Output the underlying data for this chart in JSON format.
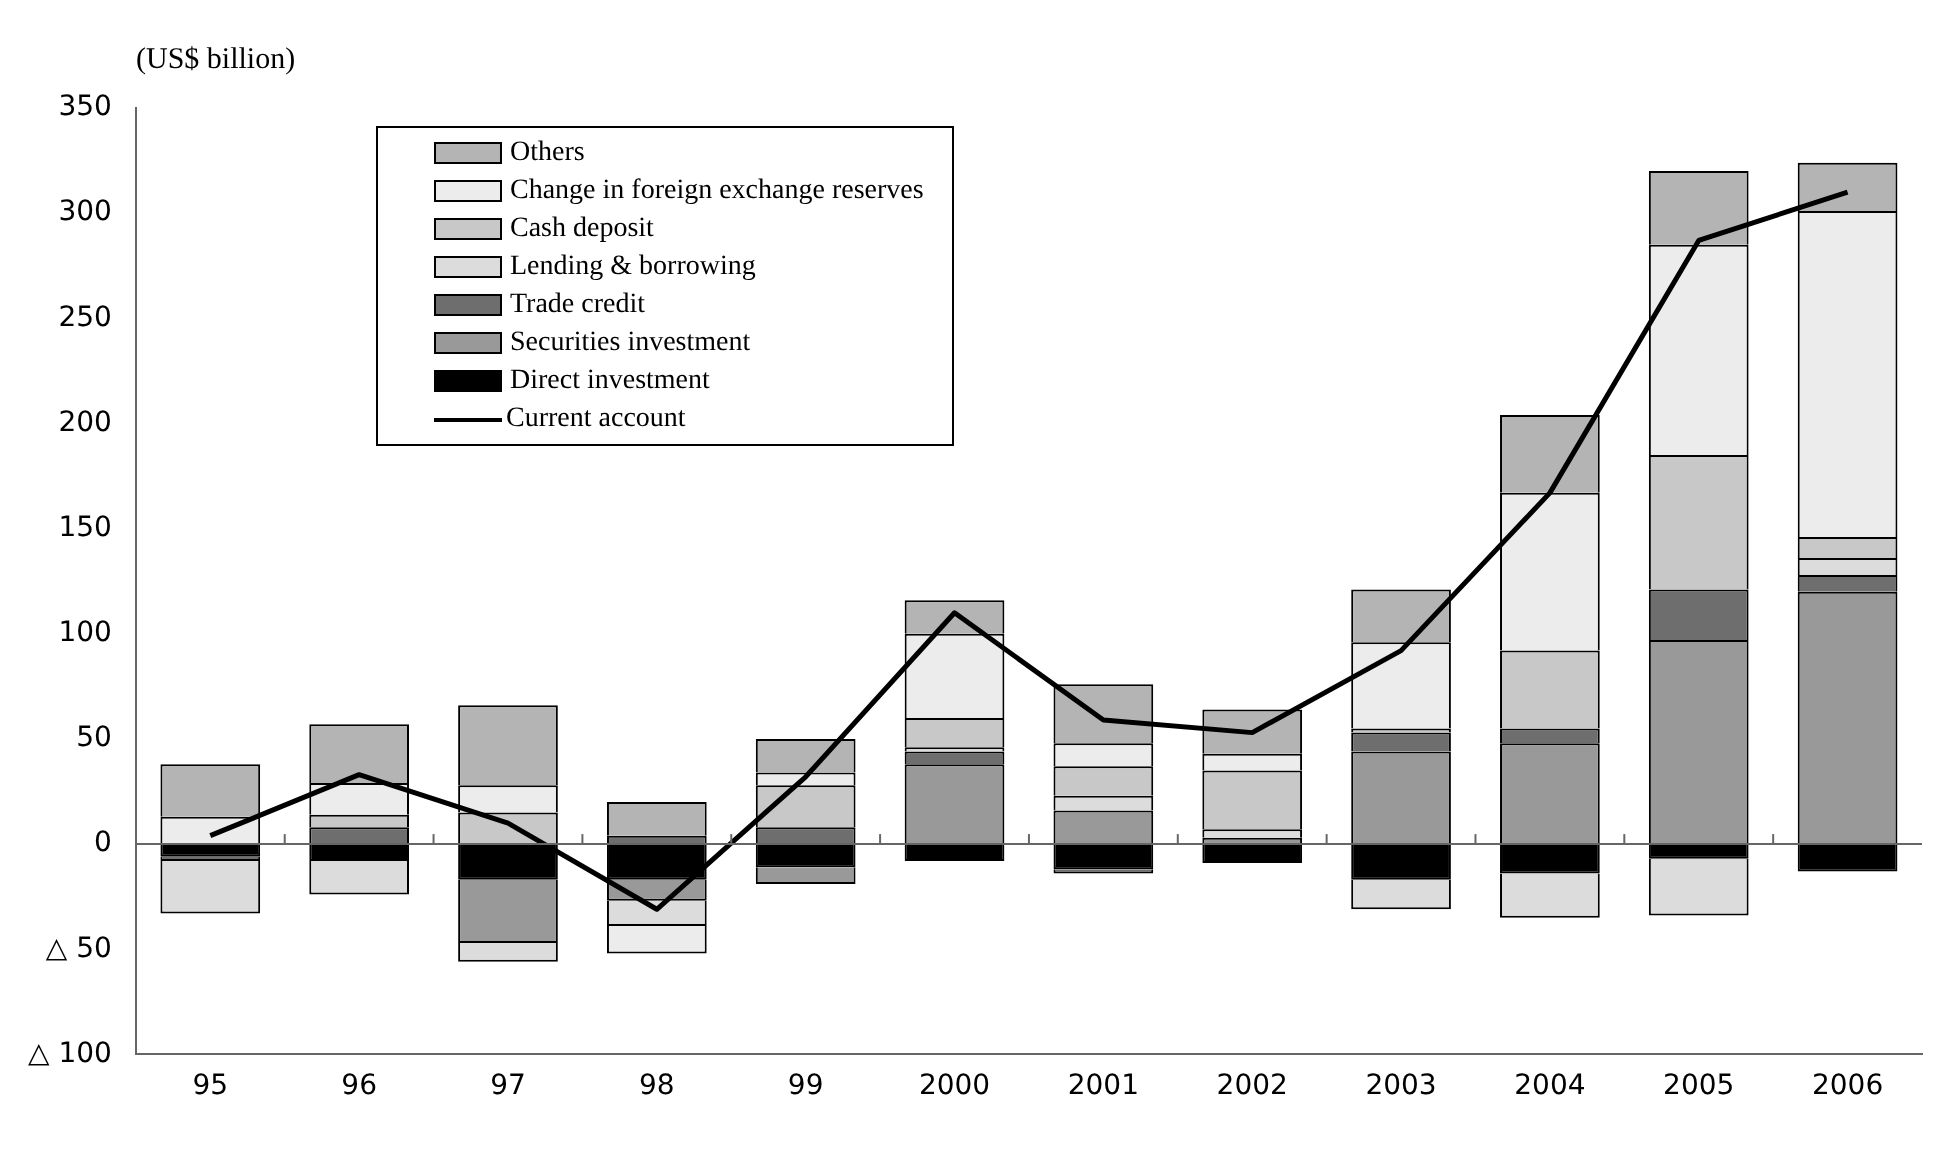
{
  "chart_data": {
    "type": "bar",
    "ylabel": "(US$ billion)",
    "categories": [
      "95",
      "96",
      "97",
      "98",
      "99",
      "2000",
      "2001",
      "2002",
      "2003",
      "2004",
      "2005",
      "2006"
    ],
    "stacked": true,
    "series": [
      {
        "name": "Direct investment",
        "color": "#000000",
        "values": [
          -6,
          -8,
          -17,
          -17,
          -11,
          -8,
          -12,
          -9,
          -17,
          -14,
          -7,
          -13
        ]
      },
      {
        "name": "Securities investment",
        "color": "#999999",
        "values": [
          0,
          0,
          -30,
          -10,
          -8,
          38,
          16,
          3,
          44,
          48,
          97,
          120
        ]
      },
      {
        "name": "Trade credit",
        "color": "#6e6e6e",
        "values": [
          -2,
          8,
          0,
          4,
          8,
          6,
          -2,
          0,
          9,
          7,
          24,
          8
        ]
      },
      {
        "name": "Lending & borrowing",
        "color": "#dcdcdc",
        "values": [
          -25,
          -16,
          -9,
          -12,
          0,
          2,
          7,
          4,
          -14,
          -21,
          -27,
          8
        ]
      },
      {
        "name": "Cash deposit",
        "color": "#c8c8c8",
        "values": [
          0,
          6,
          15,
          0,
          20,
          14,
          14,
          28,
          2,
          37,
          64,
          10
        ]
      },
      {
        "name": "Change in foreign exchange reserves",
        "color": "#ececec",
        "values": [
          13,
          15,
          13,
          -13,
          6,
          40,
          11,
          8,
          41,
          75,
          100,
          155
        ]
      },
      {
        "name": "Others",
        "color": "#b4b4b4",
        "values": [
          25,
          28,
          38,
          16,
          16,
          16,
          28,
          21,
          25,
          37,
          35,
          23
        ]
      },
      {
        "name": "Current account",
        "type": "line",
        "color": "#000000",
        "values": [
          4,
          33,
          10,
          -31,
          32,
          110,
          59,
          53,
          92,
          167,
          287,
          310
        ]
      }
    ],
    "ylim": [
      -100,
      350
    ],
    "yticks": [
      {
        "value": -100,
        "label": "△ 100"
      },
      {
        "value": -50,
        "label": "△ 50"
      },
      0,
      50,
      100,
      150,
      200,
      250,
      300,
      350
    ],
    "ref_lines": [
      {
        "axis": "y",
        "value": 0,
        "color": "#666666"
      }
    ],
    "legend": "top left",
    "marker": "none",
    "grid": false
  }
}
